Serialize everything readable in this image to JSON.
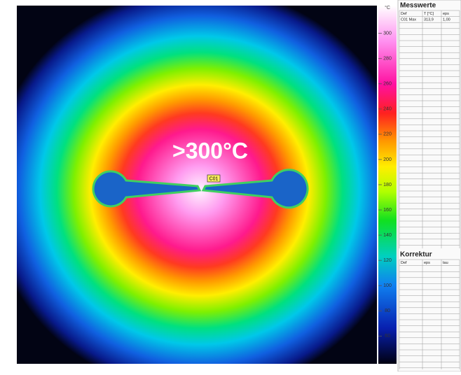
{
  "image": {
    "annotation": ">300°C",
    "marker": "C01"
  },
  "colorbar": {
    "unit": "°C",
    "range": [
      38,
      322
    ],
    "ticks": [
      300,
      280,
      260,
      240,
      220,
      200,
      180,
      160,
      140,
      120,
      100,
      80,
      60
    ]
  },
  "measurements": {
    "title": "Messwerte",
    "columns": [
      "Def",
      "T [°C]",
      "eps"
    ],
    "rows": [
      [
        "C01 Max",
        "313,9",
        "1,00"
      ]
    ]
  },
  "correction": {
    "title": "Korrektur",
    "columns": [
      "Def",
      "eps",
      "tau"
    ]
  }
}
